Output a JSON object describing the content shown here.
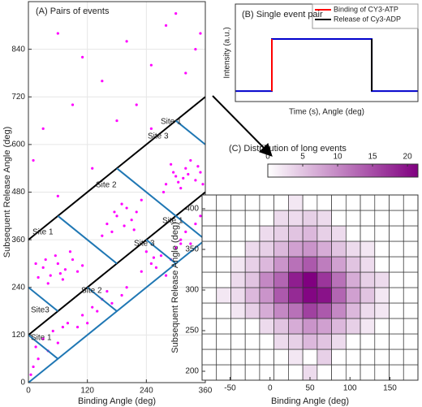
{
  "chart_data": [
    {
      "type": "scatter",
      "title": "(A) Pairs of events",
      "xlabel": "Binding Angle (deg)",
      "ylabel": "Subsequent Release Angle (deg)",
      "xlim": [
        0,
        360
      ],
      "ylim": [
        0,
        960
      ],
      "xticks": [
        0,
        120,
        240,
        360
      ],
      "yticks": [
        0,
        120,
        240,
        360,
        480,
        600,
        720,
        840
      ],
      "grid": true,
      "color": "#ff00ff",
      "x": [
        30,
        45,
        60,
        75,
        90,
        20,
        55,
        100,
        40,
        70,
        85,
        15,
        65,
        110,
        35,
        160,
        180,
        200,
        170,
        210,
        190,
        220,
        150,
        230,
        195,
        175,
        215,
        280,
        300,
        320,
        340,
        290,
        310,
        330,
        350,
        275,
        305,
        325,
        345,
        295,
        315,
        355,
        230,
        250,
        270,
        290,
        240,
        260,
        300,
        280,
        310,
        255,
        110,
        130,
        150,
        170,
        120,
        160,
        190,
        140,
        200,
        100,
        10,
        20,
        40,
        30,
        60,
        15,
        50,
        70,
        5,
        80,
        320,
        340,
        310,
        350,
        330,
        60,
        110,
        200,
        250,
        280,
        350,
        150,
        30,
        220,
        320,
        90,
        180,
        10,
        60,
        130,
        250,
        340,
        300
      ],
      "y": [
        290,
        270,
        300,
        285,
        310,
        265,
        320,
        280,
        250,
        260,
        330,
        300,
        275,
        295,
        310,
        400,
        420,
        440,
        380,
        410,
        450,
        430,
        370,
        460,
        395,
        430,
        385,
        500,
        520,
        540,
        510,
        550,
        490,
        560,
        530,
        480,
        505,
        525,
        545,
        530,
        515,
        500,
        280,
        300,
        320,
        310,
        330,
        290,
        340,
        270,
        350,
        315,
        170,
        190,
        210,
        200,
        150,
        230,
        220,
        180,
        240,
        140,
        40,
        60,
        80,
        110,
        100,
        90,
        130,
        140,
        20,
        150,
        380,
        400,
        360,
        420,
        350,
        880,
        820,
        860,
        800,
        900,
        880,
        760,
        640,
        700,
        780,
        700,
        660,
        560,
        470,
        540,
        640,
        840,
        930
      ],
      "lines": [
        {
          "color": "#000000",
          "x": [
            0,
            360
          ],
          "y": [
            360,
            720
          ]
        },
        {
          "color": "#000000",
          "x": [
            0,
            360
          ],
          "y": [
            120,
            480
          ]
        },
        {
          "color": "#1f77b4",
          "x": [
            0,
            360
          ],
          "y": [
            0,
            360
          ]
        },
        {
          "color": "#1f77b4",
          "x": [
            60,
            180
          ],
          "y": [
            420,
            300
          ]
        },
        {
          "color": "#1f77b4",
          "x": [
            180,
            300
          ],
          "y": [
            540,
            420
          ]
        },
        {
          "color": "#1f77b4",
          "x": [
            300,
            360
          ],
          "y": [
            660,
            600
          ]
        },
        {
          "color": "#1f77b4",
          "x": [
            0,
            60
          ],
          "y": [
            240,
            180
          ]
        },
        {
          "color": "#1f77b4",
          "x": [
            0,
            60
          ],
          "y": [
            120,
            60
          ]
        },
        {
          "color": "#1f77b4",
          "x": [
            120,
            180
          ],
          "y": [
            240,
            180
          ]
        },
        {
          "color": "#1f77b4",
          "x": [
            240,
            300
          ],
          "y": [
            360,
            300
          ]
        },
        {
          "color": "#1f77b4",
          "x": [
            300,
            360
          ],
          "y": [
            420,
            360
          ]
        }
      ],
      "annotations": [
        "Site 1",
        "Site 3",
        "Site 2",
        "Site 1",
        "Site 3",
        "Site 1",
        "Site 2",
        "Site3",
        "Site 1"
      ]
    },
    {
      "type": "line",
      "title": "(B) Single event pair",
      "xlabel": "Time (s), Angle (deg)",
      "ylabel": "Intensity (a.u.)",
      "xlim": [
        0,
        1
      ],
      "ylim": [
        -0.2,
        1.67
      ],
      "legend": "upper right",
      "series": [
        {
          "color": "#0000cc",
          "x": [
            0,
            0.2,
            0.2,
            0.747,
            0.747,
            1
          ],
          "y": [
            0,
            0,
            1,
            1,
            0,
            0
          ]
        },
        {
          "name": "Binding of CY3-ATP",
          "color": "#ff0000",
          "x": [
            0.2,
            0.2
          ],
          "y": [
            0,
            1
          ]
        },
        {
          "name": "Release of Cy3-ADP",
          "color": "#000000",
          "x": [
            0.747,
            0.747
          ],
          "y": [
            1,
            0
          ]
        }
      ]
    },
    {
      "type": "heatmap",
      "title": "(C) Distribution of long events",
      "xlabel": "Binding Angle (deg)",
      "ylabel": "Subsequent Release Angle (deg)",
      "xlim": [
        -85,
        185
      ],
      "ylim": [
        189,
        417
      ],
      "xticks": [
        -50,
        0,
        50,
        100,
        150
      ],
      "yticks": [
        200,
        250,
        300,
        350,
        400
      ],
      "colorlim": [
        0,
        21.5
      ],
      "colorticks": [
        0,
        5,
        10,
        15,
        20
      ],
      "color": "#800080",
      "xedges": [
        -85,
        -67,
        -49,
        -31,
        -13,
        5,
        23,
        41,
        59,
        77,
        95,
        113,
        131,
        149,
        167,
        185
      ],
      "yedges": [
        189,
        208,
        227,
        246,
        265,
        284,
        303,
        322,
        341,
        360,
        379,
        398,
        417
      ],
      "z": [
        [
          0,
          0,
          0,
          0,
          0,
          0,
          0,
          3,
          0,
          0,
          0,
          0,
          0,
          0,
          0
        ],
        [
          0,
          0,
          0,
          0,
          0,
          0,
          2,
          0,
          4,
          0,
          0,
          0,
          0,
          0,
          0
        ],
        [
          0,
          0,
          0,
          0,
          0,
          3,
          4,
          6,
          5,
          3,
          0,
          0,
          0,
          0,
          0
        ],
        [
          0,
          0,
          0,
          0,
          3,
          5,
          7,
          9,
          8,
          6,
          4,
          2,
          0,
          0,
          0
        ],
        [
          0,
          0,
          2,
          4,
          7,
          10,
          12,
          16,
          14,
          10,
          6,
          3,
          2,
          0,
          0
        ],
        [
          0,
          2,
          3,
          6,
          9,
          14,
          18,
          21,
          20,
          13,
          8,
          5,
          2,
          0,
          0
        ],
        [
          0,
          0,
          3,
          5,
          10,
          13,
          19,
          22,
          17,
          12,
          7,
          4,
          3,
          0,
          0
        ],
        [
          0,
          0,
          2,
          4,
          6,
          9,
          12,
          14,
          11,
          8,
          5,
          3,
          0,
          0,
          0
        ],
        [
          0,
          0,
          0,
          3,
          4,
          6,
          8,
          9,
          7,
          5,
          3,
          2,
          0,
          0,
          0
        ],
        [
          0,
          0,
          0,
          0,
          3,
          4,
          5,
          6,
          4,
          3,
          0,
          0,
          0,
          0,
          0
        ],
        [
          0,
          0,
          0,
          0,
          0,
          3,
          3,
          4,
          3,
          0,
          0,
          0,
          0,
          0,
          0
        ],
        [
          0,
          0,
          0,
          0,
          0,
          0,
          2,
          0,
          0,
          0,
          0,
          0,
          0,
          0,
          0
        ]
      ]
    }
  ]
}
